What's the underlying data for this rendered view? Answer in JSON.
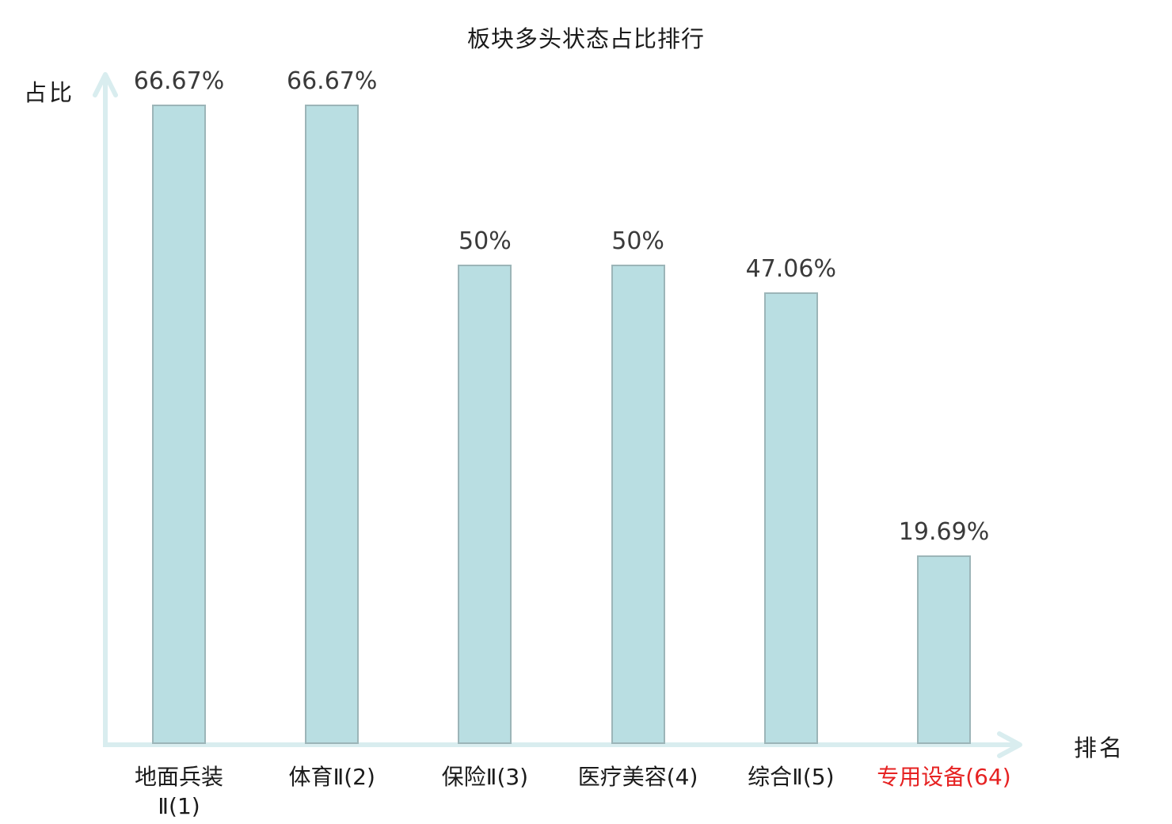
{
  "chart_data": {
    "type": "bar",
    "title": "板块多头状态占比排行",
    "xlabel": "排名",
    "ylabel": "占比",
    "categories": [
      "地面兵装\nⅡ(1)",
      "体育Ⅱ(2)",
      "保险Ⅱ(3)",
      "医疗美容(4)",
      "综合Ⅱ(5)",
      "专用设备(64)"
    ],
    "values": [
      66.67,
      66.67,
      50,
      50,
      47.06,
      19.69
    ],
    "value_labels": [
      "66.67%",
      "66.67%",
      "50%",
      "50%",
      "47.06%",
      "19.69%"
    ],
    "highlight_index": 5,
    "ylim": [
      0,
      70
    ],
    "grid": false,
    "legend": "none",
    "colors": {
      "bar_fill": "#b9dee2",
      "bar_border": "#9cb5b8",
      "axis": "#d9edef",
      "value_label": "#3a3a3a",
      "category_label": "#1b1b1b",
      "highlight_label": "#e62222"
    }
  }
}
